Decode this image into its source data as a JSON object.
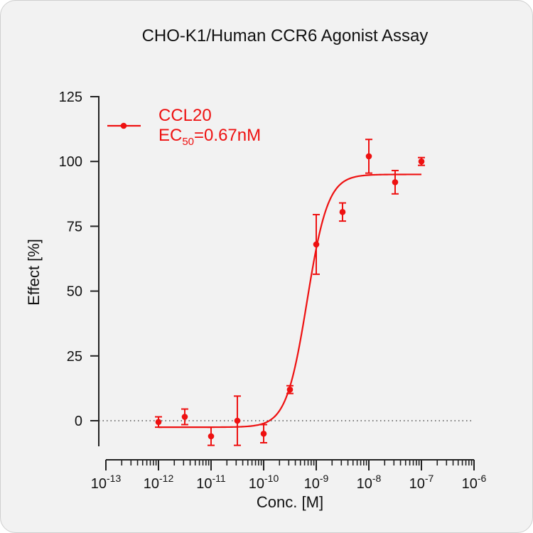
{
  "chart_data": {
    "type": "scatter",
    "title": "CHO-K1/Human CCR6 Agonist Assay",
    "xlabel": "Conc. [M]",
    "ylabel": "Effect  [%]",
    "x_scale": "log",
    "xlim": [
      1e-13,
      1e-06
    ],
    "ylim": [
      -10,
      125
    ],
    "x_tick_exponents": [
      "-13",
      "-12",
      "-11",
      "-10",
      "-9",
      "-8",
      "-7",
      "-6"
    ],
    "x_tick_base": "10",
    "y_ticks": [
      0,
      25,
      50,
      75,
      100,
      125
    ],
    "y_tick_labels": [
      "0",
      "25",
      "50",
      "75",
      "100",
      "125"
    ],
    "reference_line": {
      "y": 0,
      "style": "dotted"
    },
    "legend": {
      "position": "top-left",
      "series_label": "CCL20",
      "ec50_prefix": "EC",
      "ec50_subscript": "50",
      "ec50_value": "=0.67nM"
    },
    "series": [
      {
        "name": "CCL20",
        "color": "#ee1111",
        "points": [
          {
            "x": 1e-12,
            "y": -0.5,
            "err": 2
          },
          {
            "x": 3.16e-12,
            "y": 1.5,
            "err": 3
          },
          {
            "x": 1e-11,
            "y": -6,
            "err": 3.5
          },
          {
            "x": 3.16e-11,
            "y": 0,
            "err": 9.5
          },
          {
            "x": 1e-10,
            "y": -5,
            "err": 3.5
          },
          {
            "x": 3.16e-10,
            "y": 12,
            "err": 1.5
          },
          {
            "x": 1e-09,
            "y": 68,
            "err": 11.5
          },
          {
            "x": 3.16e-09,
            "y": 80.5,
            "err": 3.5
          },
          {
            "x": 1e-08,
            "y": 102,
            "err": 6.5
          },
          {
            "x": 3.16e-08,
            "y": 92,
            "err": 4.5
          },
          {
            "x": 1e-07,
            "y": 100,
            "err": 1.5
          }
        ],
        "fit": {
          "bottom": -2.5,
          "top": 95,
          "ec50": 6.7e-10,
          "hill": 2.2
        }
      }
    ]
  }
}
